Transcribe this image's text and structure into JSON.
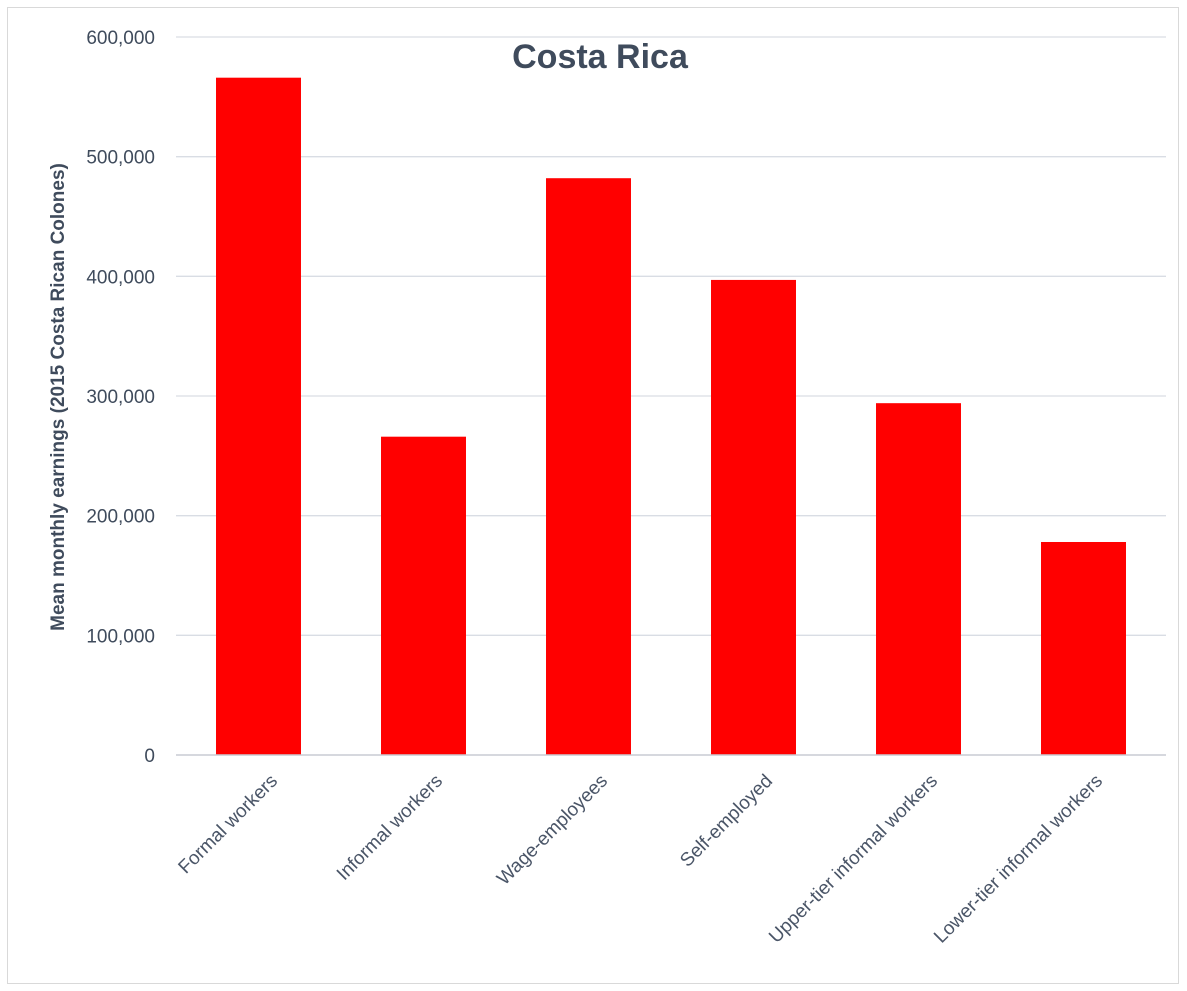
{
  "chart_data": {
    "type": "bar",
    "title": "Costa Rica",
    "xlabel": "",
    "ylabel": "Mean monthly earnings (2015 Costa Rican Colones)",
    "categories": [
      "Formal workers",
      "Informal workers",
      "Wage-employees",
      "Self-employed",
      "Upper-tier informal workers",
      "Lower-tier informal workers"
    ],
    "values": [
      566000,
      266000,
      482000,
      397000,
      294000,
      178000
    ],
    "ylim": [
      0,
      600000
    ],
    "yticks": [
      0,
      100000,
      200000,
      300000,
      400000,
      500000,
      600000
    ],
    "ytick_labels": [
      "0",
      "100,000",
      "200,000",
      "300,000",
      "400,000",
      "500,000",
      "600,000"
    ],
    "grid": true,
    "legend": "none",
    "bar_color": "#ff0000"
  }
}
